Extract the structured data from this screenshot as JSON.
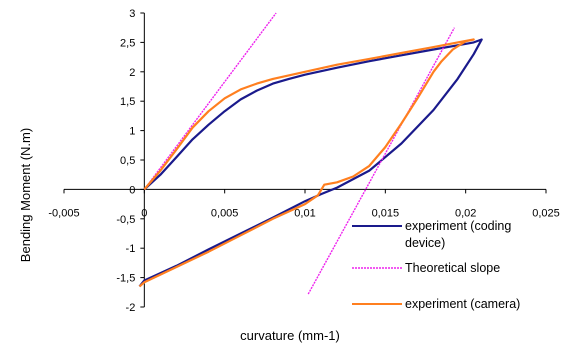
{
  "chart_data": {
    "type": "line",
    "xlabel": "curvature (mm-1)",
    "ylabel": "Bending Moment (N.m)",
    "xlim": [
      -0.005,
      0.025
    ],
    "ylim": [
      -2,
      3
    ],
    "x_ticks": [
      "-0,005",
      "0",
      "0,005",
      "0,01",
      "0,015",
      "0,02",
      "0,025"
    ],
    "y_ticks": [
      "3",
      "2,5",
      "2",
      "1,5",
      "1",
      "0,5",
      "0",
      "-0,5",
      "-1",
      "-1,5",
      "-2"
    ],
    "grid": false,
    "legend_position": "bottom-right",
    "legend": [
      {
        "lines": [
          "experiment (coding",
          "device)"
        ],
        "color": "#1a1a8c",
        "style": "solid"
      },
      {
        "lines": [
          "Theoretical slope"
        ],
        "color": "#ee22ee",
        "style": "dashed"
      },
      {
        "lines": [
          "experiment (camera)"
        ],
        "color": "#ff7f1f",
        "style": "solid"
      }
    ],
    "series": [
      {
        "name": "experiment (coding device)",
        "color": "#1a1a8c",
        "points": [
          [
            0,
            0
          ],
          [
            0.001,
            0.25
          ],
          [
            0.002,
            0.55
          ],
          [
            0.003,
            0.85
          ],
          [
            0.004,
            1.1
          ],
          [
            0.005,
            1.33
          ],
          [
            0.006,
            1.53
          ],
          [
            0.007,
            1.68
          ],
          [
            0.008,
            1.8
          ],
          [
            0.009,
            1.88
          ],
          [
            0.01,
            1.95
          ],
          [
            0.012,
            2.07
          ],
          [
            0.014,
            2.18
          ],
          [
            0.016,
            2.28
          ],
          [
            0.018,
            2.38
          ],
          [
            0.0195,
            2.45
          ],
          [
            0.0205,
            2.5
          ],
          [
            0.021,
            2.55
          ],
          [
            0.0205,
            2.3
          ],
          [
            0.0195,
            1.88
          ],
          [
            0.018,
            1.35
          ],
          [
            0.016,
            0.78
          ],
          [
            0.014,
            0.32
          ],
          [
            0.012,
            0.03
          ],
          [
            0.011,
            -0.08
          ],
          [
            0.01,
            -0.2
          ],
          [
            0.008,
            -0.48
          ],
          [
            0.006,
            -0.75
          ],
          [
            0.004,
            -1.02
          ],
          [
            0.002,
            -1.3
          ],
          [
            0.0,
            -1.55
          ],
          [
            -0.0003,
            -1.65
          ]
        ]
      },
      {
        "name": "Theoretical slope",
        "color": "#ee22ee",
        "segments": [
          [
            [
              0,
              0
            ],
            [
              0.0082,
              3.0
            ]
          ],
          [
            [
              0.0102,
              -1.78
            ],
            [
              0.0193,
              2.75
            ]
          ]
        ]
      },
      {
        "name": "experiment (camera)",
        "color": "#ff7f1f",
        "points": [
          [
            0,
            0
          ],
          [
            0.001,
            0.32
          ],
          [
            0.002,
            0.68
          ],
          [
            0.003,
            1.05
          ],
          [
            0.004,
            1.33
          ],
          [
            0.005,
            1.55
          ],
          [
            0.006,
            1.7
          ],
          [
            0.007,
            1.8
          ],
          [
            0.008,
            1.88
          ],
          [
            0.01,
            2.0
          ],
          [
            0.012,
            2.12
          ],
          [
            0.014,
            2.22
          ],
          [
            0.016,
            2.32
          ],
          [
            0.018,
            2.42
          ],
          [
            0.0195,
            2.5
          ],
          [
            0.0205,
            2.55
          ],
          [
            0.02,
            2.52
          ],
          [
            0.0192,
            2.38
          ],
          [
            0.0185,
            2.18
          ],
          [
            0.018,
            2.0
          ],
          [
            0.017,
            1.55
          ],
          [
            0.016,
            1.12
          ],
          [
            0.015,
            0.72
          ],
          [
            0.014,
            0.4
          ],
          [
            0.013,
            0.22
          ],
          [
            0.012,
            0.12
          ],
          [
            0.0112,
            0.08
          ],
          [
            0.0108,
            -0.1
          ],
          [
            0.01,
            -0.25
          ],
          [
            0.008,
            -0.5
          ],
          [
            0.006,
            -0.78
          ],
          [
            0.004,
            -1.06
          ],
          [
            0.002,
            -1.32
          ],
          [
            0.0,
            -1.58
          ],
          [
            -0.0003,
            -1.65
          ]
        ]
      }
    ]
  }
}
